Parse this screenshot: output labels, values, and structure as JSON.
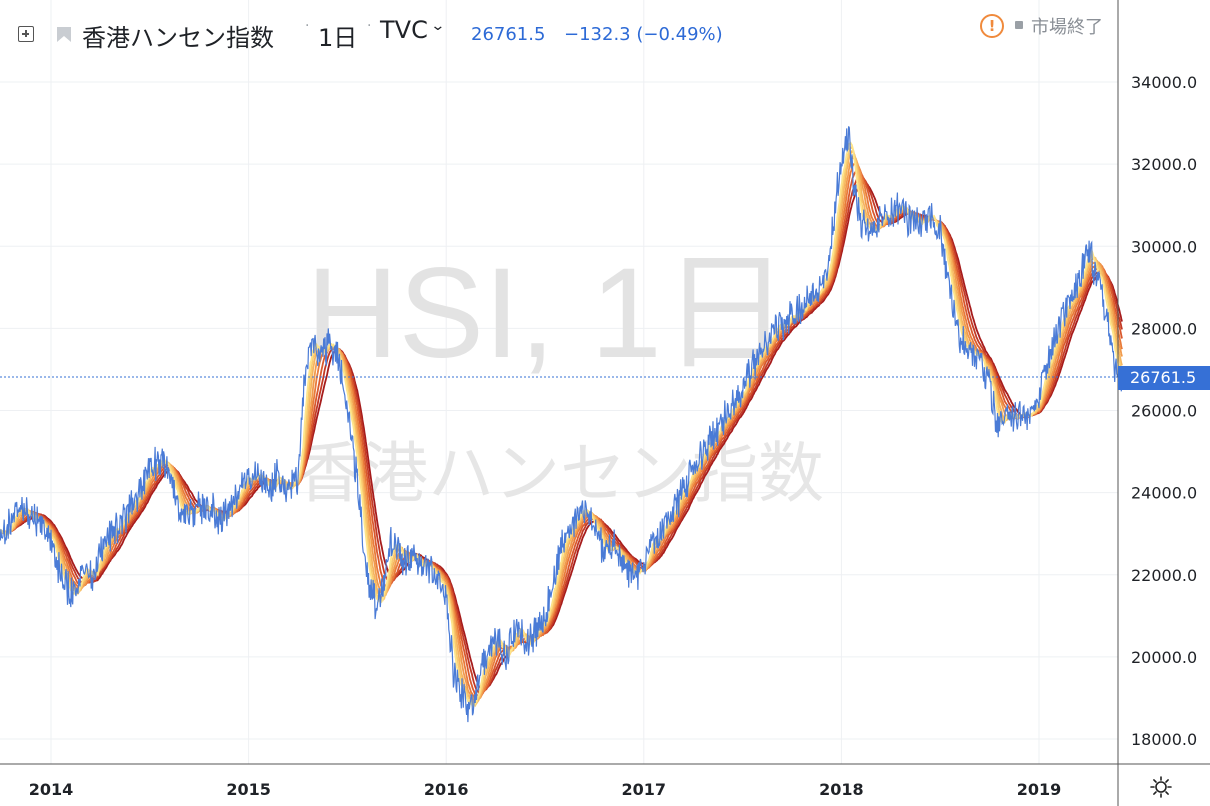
{
  "header": {
    "symbol_name": "香港ハンセン指数",
    "interval": "1日",
    "source": "TVC",
    "last_price": "26761.5",
    "change": "−132.3 (−0.49%)",
    "market_status": "市場終了"
  },
  "watermark": {
    "line1": "HSI, 1日",
    "line2": "香港ハンセン指数"
  },
  "price_axis": {
    "ticks": [
      "34000.0",
      "32000.0",
      "30000.0",
      "28000.0",
      "26000.0",
      "24000.0",
      "22000.0",
      "20000.0",
      "18000.0"
    ],
    "current_label": "26761.5"
  },
  "time_axis": {
    "ticks": [
      "2014",
      "2015",
      "2016",
      "2017",
      "2018",
      "2019"
    ]
  },
  "icons": {
    "expand": "expand-icon",
    "flag": "flag-icon",
    "alert": "alert-icon",
    "settings": "sun-icon"
  },
  "colors": {
    "price_line": "#4a7bd6",
    "ribbon_fast": "#fde48a",
    "ribbon_slow": "#a61c1c",
    "accent": "#3670d6"
  },
  "chart_data": {
    "type": "line",
    "title": "香港ハンセン指数",
    "xlabel": "",
    "ylabel": "",
    "ylim": [
      17200,
      35300
    ],
    "xlim": [
      2013.7,
      2019.42
    ],
    "grid": true,
    "series": [
      {
        "x": [
          2013.7,
          2013.78,
          2013.85,
          2013.92,
          2014.0,
          2014.05,
          2014.1,
          2014.18,
          2014.22,
          2014.28,
          2014.35,
          2014.42,
          2014.5,
          2014.55,
          2014.6,
          2014.65,
          2014.7,
          2014.75,
          2014.8,
          2014.85,
          2014.92,
          2015.0,
          2015.05,
          2015.1,
          2015.15,
          2015.2,
          2015.25,
          2015.28,
          2015.31,
          2015.35,
          2015.4,
          2015.45,
          2015.5,
          2015.53,
          2015.56,
          2015.6,
          2015.65,
          2015.68,
          2015.72,
          2015.78,
          2015.85,
          2015.92,
          2016.0,
          2016.04,
          2016.08,
          2016.12,
          2016.18,
          2016.25,
          2016.3,
          2016.35,
          2016.4,
          2016.45,
          2016.5,
          2016.55,
          2016.6,
          2016.65,
          2016.7,
          2016.75,
          2016.8,
          2016.85,
          2016.9,
          2016.95,
          2017.0,
          2017.08,
          2017.15,
          2017.22,
          2017.3,
          2017.38,
          2017.45,
          2017.52,
          2017.6,
          2017.68,
          2017.75,
          2017.82,
          2017.88,
          2017.92,
          2017.96,
          2018.0,
          2018.04,
          2018.06,
          2018.08,
          2018.1,
          2018.15,
          2018.2,
          2018.25,
          2018.3,
          2018.35,
          2018.4,
          2018.45,
          2018.5,
          2018.55,
          2018.6,
          2018.65,
          2018.7,
          2018.75,
          2018.78,
          2018.81,
          2018.85,
          2018.9,
          2018.95,
          2019.0,
          2019.05,
          2019.1,
          2019.15,
          2019.2,
          2019.25,
          2019.28,
          2019.31,
          2019.35,
          2019.38,
          2019.42
        ],
        "values": [
          23000,
          23200,
          23600,
          23400,
          22800,
          22000,
          21600,
          22200,
          22000,
          22900,
          23200,
          23800,
          24600,
          24800,
          24600,
          23500,
          23400,
          23600,
          23700,
          23300,
          23700,
          24300,
          24600,
          24100,
          24400,
          24100,
          24300,
          26500,
          27800,
          27200,
          27600,
          27400,
          26200,
          25000,
          23800,
          22000,
          21200,
          21700,
          22800,
          22400,
          22300,
          22100,
          21500,
          19500,
          19100,
          18600,
          19800,
          20500,
          20000,
          20800,
          20300,
          20600,
          21000,
          22000,
          23000,
          23200,
          23600,
          23100,
          22600,
          22700,
          22200,
          21800,
          22300,
          23000,
          23600,
          24300,
          25000,
          25600,
          26100,
          26800,
          27500,
          28000,
          28300,
          28600,
          29000,
          29200,
          30600,
          32100,
          32700,
          31400,
          31000,
          30500,
          30400,
          30700,
          30800,
          31000,
          30500,
          30600,
          30700,
          30400,
          28900,
          27800,
          27500,
          27200,
          26700,
          25700,
          25800,
          25900,
          25800,
          25900,
          26400,
          27300,
          28000,
          28700,
          29100,
          30000,
          29400,
          29000,
          28200,
          27000,
          26761.5
        ]
      }
    ]
  }
}
